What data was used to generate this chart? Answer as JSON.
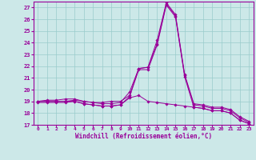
{
  "bg_color": "#cce8e8",
  "line_color": "#990099",
  "grid_color": "#99cccc",
  "xlabel": "Windchill (Refroidissement éolien,°C)",
  "xlim": [
    -0.5,
    23.5
  ],
  "ylim": [
    17.0,
    27.5
  ],
  "yticks": [
    17,
    18,
    19,
    20,
    21,
    22,
    23,
    24,
    25,
    26,
    27
  ],
  "xticks": [
    0,
    1,
    2,
    3,
    4,
    5,
    6,
    7,
    8,
    9,
    10,
    11,
    12,
    13,
    14,
    15,
    16,
    17,
    18,
    19,
    20,
    21,
    22,
    23
  ],
  "series": [
    {
      "x": [
        0,
        1,
        2,
        3,
        4,
        5,
        6,
        7,
        8,
        9,
        10,
        11,
        12,
        13,
        14,
        15,
        16,
        17,
        18,
        19,
        20,
        21,
        22,
        23
      ],
      "y": [
        19.0,
        19.0,
        19.0,
        19.0,
        19.1,
        19.0,
        18.9,
        18.8,
        18.8,
        18.9,
        19.8,
        21.8,
        21.9,
        23.9,
        27.3,
        26.3,
        21.2,
        18.7,
        18.6,
        18.4,
        18.4,
        18.2,
        17.6,
        17.2
      ]
    },
    {
      "x": [
        0,
        1,
        2,
        3,
        4,
        5,
        6,
        7,
        8,
        9,
        10,
        11,
        12,
        13,
        14,
        15,
        16,
        17,
        18,
        19,
        20,
        21,
        22,
        23
      ],
      "y": [
        19.0,
        19.1,
        19.1,
        19.2,
        19.2,
        19.0,
        18.9,
        18.9,
        19.0,
        19.0,
        19.5,
        21.8,
        21.9,
        24.2,
        27.4,
        26.4,
        21.3,
        18.8,
        18.7,
        18.5,
        18.5,
        18.3,
        17.7,
        17.3
      ]
    },
    {
      "x": [
        0,
        1,
        2,
        3,
        4,
        5,
        6,
        7,
        8,
        9,
        10,
        11,
        12,
        13,
        14,
        15,
        16,
        17,
        18,
        19,
        20,
        21,
        22,
        23
      ],
      "y": [
        18.9,
        18.9,
        18.9,
        18.9,
        19.0,
        18.8,
        18.7,
        18.6,
        18.6,
        18.7,
        19.4,
        21.7,
        21.7,
        23.8,
        27.2,
        26.2,
        21.1,
        18.5,
        18.4,
        18.2,
        18.2,
        18.0,
        17.4,
        17.1
      ]
    },
    {
      "x": [
        0,
        1,
        2,
        3,
        4,
        5,
        6,
        7,
        8,
        9,
        10,
        11,
        12,
        13,
        14,
        15,
        16,
        17,
        18,
        19,
        20,
        21,
        22,
        23
      ],
      "y": [
        19.0,
        19.0,
        19.0,
        19.0,
        19.0,
        18.8,
        18.7,
        18.6,
        18.6,
        18.7,
        19.3,
        19.5,
        19.0,
        18.9,
        18.8,
        18.7,
        18.6,
        18.5,
        18.4,
        18.2,
        18.2,
        18.0,
        17.4,
        17.1
      ]
    }
  ]
}
